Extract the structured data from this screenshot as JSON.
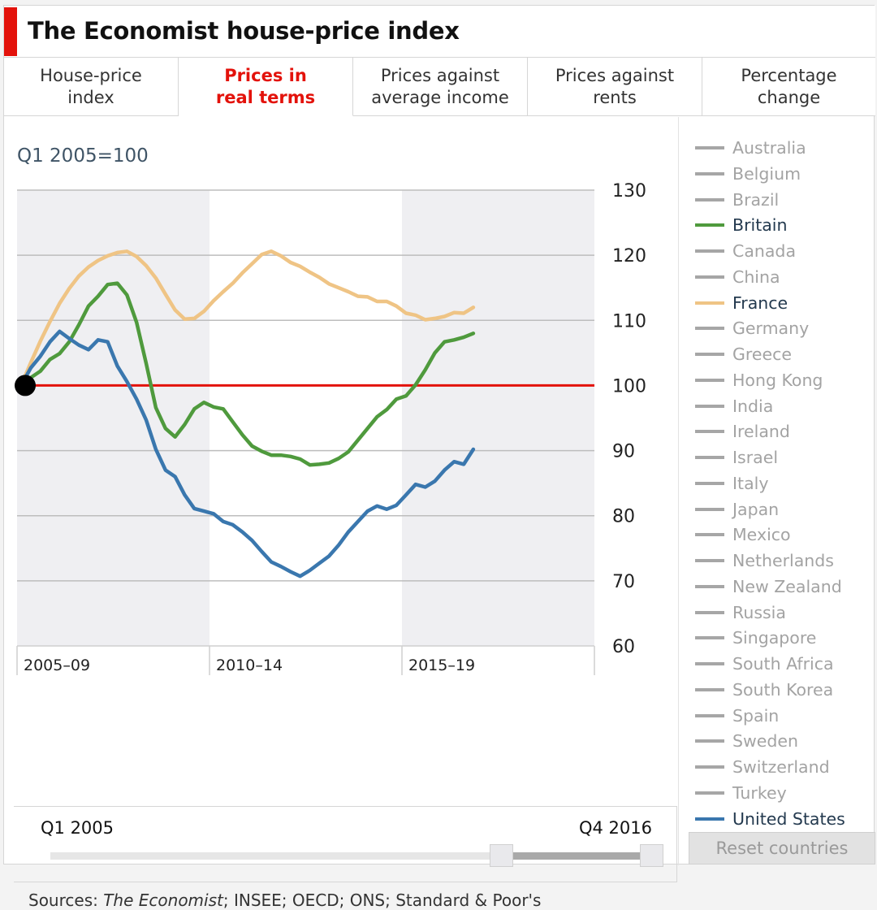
{
  "title": "The Economist house-price index",
  "tabs": [
    {
      "label": "House-price\nindex",
      "active": false
    },
    {
      "label": "Prices in\nreal terms",
      "active": true
    },
    {
      "label": "Prices against\naverage income",
      "active": false
    },
    {
      "label": "Prices against\nrents",
      "active": false
    },
    {
      "label": "Percentage\nchange",
      "active": false
    }
  ],
  "unit_label": "Q1 2005=100",
  "slider": {
    "start_label": "Q1 2005",
    "end_label": "Q4 2016",
    "range_start_fraction": 0.75,
    "range_end_fraction": 1.0
  },
  "sources": {
    "prefix": "Sources: ",
    "italic": "The Economist",
    "rest": "; INSEE; OECD; ONS; Standard & Poor's"
  },
  "legend": {
    "countries": [
      {
        "name": "Australia",
        "selected": false
      },
      {
        "name": "Belgium",
        "selected": false
      },
      {
        "name": "Brazil",
        "selected": false
      },
      {
        "name": "Britain",
        "selected": true,
        "color": "#4f9a3d"
      },
      {
        "name": "Canada",
        "selected": false
      },
      {
        "name": "China",
        "selected": false
      },
      {
        "name": "France",
        "selected": true,
        "color": "#efc485"
      },
      {
        "name": "Germany",
        "selected": false
      },
      {
        "name": "Greece",
        "selected": false
      },
      {
        "name": "Hong Kong",
        "selected": false
      },
      {
        "name": "India",
        "selected": false
      },
      {
        "name": "Ireland",
        "selected": false
      },
      {
        "name": "Israel",
        "selected": false
      },
      {
        "name": "Italy",
        "selected": false
      },
      {
        "name": "Japan",
        "selected": false
      },
      {
        "name": "Mexico",
        "selected": false
      },
      {
        "name": "Netherlands",
        "selected": false
      },
      {
        "name": "New Zealand",
        "selected": false
      },
      {
        "name": "Russia",
        "selected": false
      },
      {
        "name": "Singapore",
        "selected": false
      },
      {
        "name": "South Africa",
        "selected": false
      },
      {
        "name": "South Korea",
        "selected": false
      },
      {
        "name": "Spain",
        "selected": false
      },
      {
        "name": "Sweden",
        "selected": false
      },
      {
        "name": "Switzerland",
        "selected": false
      },
      {
        "name": "Turkey",
        "selected": false
      },
      {
        "name": "United States",
        "selected": true,
        "color": "#3a77ae"
      }
    ],
    "reset_label": "Reset countries"
  },
  "colors": {
    "accent": "#e3120b",
    "baseline": "#e3120b",
    "band": "#efeff2",
    "grid": "#bdbdbd"
  },
  "chart_data": {
    "type": "line",
    "title": "The Economist house-price index",
    "subtitle": "Prices in real terms",
    "ylabel": "Q1 2005=100",
    "xlabel": "",
    "ylim": [
      60,
      130
    ],
    "yticks": [
      130,
      120,
      110,
      100,
      90,
      80,
      70,
      60
    ],
    "y_axis_side": "right",
    "grid": true,
    "baseline": 100,
    "x_range": [
      "Q1 2005",
      "Q4 2019"
    ],
    "x_bands": [
      "2005–09",
      "2010–14",
      "2015–19"
    ],
    "x": [
      "2005Q1",
      "2005Q2",
      "2005Q3",
      "2005Q4",
      "2006Q1",
      "2006Q2",
      "2006Q3",
      "2006Q4",
      "2007Q1",
      "2007Q2",
      "2007Q3",
      "2007Q4",
      "2008Q1",
      "2008Q2",
      "2008Q3",
      "2008Q4",
      "2009Q1",
      "2009Q2",
      "2009Q3",
      "2009Q4",
      "2010Q1",
      "2010Q2",
      "2010Q3",
      "2010Q4",
      "2011Q1",
      "2011Q2",
      "2011Q3",
      "2011Q4",
      "2012Q1",
      "2012Q2",
      "2012Q3",
      "2012Q4",
      "2013Q1",
      "2013Q2",
      "2013Q3",
      "2013Q4",
      "2014Q1",
      "2014Q2",
      "2014Q3",
      "2014Q4",
      "2015Q1",
      "2015Q2",
      "2015Q3",
      "2015Q4",
      "2016Q1",
      "2016Q2",
      "2016Q3",
      "2016Q4"
    ],
    "series": [
      {
        "name": "France",
        "color": "#efc485",
        "values": [
          100,
          103.5,
          106.8,
          109.8,
          112.6,
          114.9,
          116.8,
          118.2,
          119.2,
          119.9,
          120.4,
          120.6,
          119.8,
          118.4,
          116.5,
          114,
          111.6,
          110.2,
          110.3,
          111.4,
          113,
          114.4,
          115.7,
          117.3,
          118.7,
          120.1,
          120.6,
          119.9,
          118.9,
          118.3,
          117.4,
          116.6,
          115.6,
          115,
          114.4,
          113.7,
          113.6,
          112.9,
          112.9,
          112.2,
          111.1,
          110.8,
          110.1,
          110.3,
          110.6,
          111.2,
          111.1,
          112
        ]
      },
      {
        "name": "Britain",
        "color": "#4f9a3d",
        "values": [
          100,
          101.2,
          102.2,
          104,
          104.9,
          106.7,
          109.3,
          112.2,
          113.7,
          115.5,
          115.7,
          113.9,
          109.7,
          103.4,
          96.6,
          93.4,
          92.1,
          94,
          96.4,
          97.4,
          96.7,
          96.4,
          94.4,
          92.4,
          90.7,
          89.9,
          89.3,
          89.3,
          89.1,
          88.7,
          87.8,
          87.9,
          88.1,
          88.8,
          89.8,
          91.6,
          93.4,
          95.2,
          96.3,
          97.9,
          98.4,
          100.1,
          102.4,
          105,
          106.7,
          107,
          107.4,
          108
        ]
      },
      {
        "name": "United States",
        "color": "#3a77ae",
        "values": [
          100,
          102.7,
          104.5,
          106.7,
          108.3,
          107.2,
          106.2,
          105.5,
          107,
          106.7,
          103,
          100.6,
          97.9,
          94.7,
          90.2,
          87,
          86,
          83.2,
          81.1,
          80.7,
          80.3,
          79.1,
          78.6,
          77.5,
          76.2,
          74.5,
          72.9,
          72.2,
          71.4,
          70.7,
          71.6,
          72.7,
          73.8,
          75.5,
          77.5,
          79.1,
          80.7,
          81.5,
          81,
          81.6,
          83.2,
          84.8,
          84.4,
          85.3,
          87,
          88.3,
          87.9,
          90.2
        ]
      }
    ]
  }
}
